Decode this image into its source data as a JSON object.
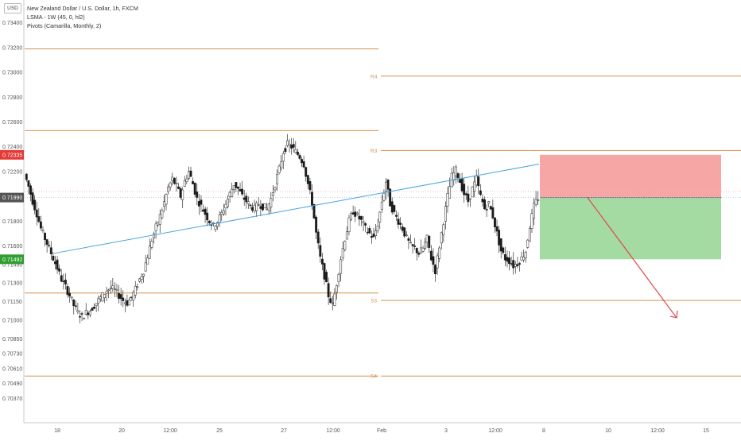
{
  "header": {
    "currency_badge": "USD",
    "symbol_title": "New Zealand Dollar / U.S. Dollar, 1h, FXCM",
    "indicator_1": "LSMA - 1W (45, 0, hl2)",
    "indicator_2": "Pivots (Camarilla, Monthly, 2)"
  },
  "chart_data": {
    "type": "candlestick",
    "symbol": "NZDUSD",
    "timeframe": "1h",
    "ylim": [
      0.7025,
      0.7352
    ],
    "y_ticks": [
      "0.73400",
      "0.73200",
      "0.73000",
      "0.72800",
      "0.72600",
      "0.72400",
      "0.72200",
      "0.71800",
      "0.71600",
      "0.71450",
      "0.71300",
      "0.71150",
      "0.71000",
      "0.70850",
      "0.70730",
      "0.70610",
      "0.70490",
      "0.70370"
    ],
    "x_ticks": [
      "18",
      "20",
      "12:00",
      "25",
      "27",
      "12:00",
      "Feb",
      "3",
      "12:00",
      "8",
      "10",
      "12:00",
      "15"
    ],
    "price_labels": [
      {
        "value": 0.72335,
        "text": "0.72335",
        "color": "#e53935"
      },
      {
        "value": 0.7199,
        "text": "0.71990",
        "color": "#555555"
      },
      {
        "value": 0.71492,
        "text": "0.71492",
        "color": "#2e9e2e"
      }
    ],
    "pivots": {
      "color": "#d9904a",
      "prev_period": [
        0.7319,
        0.7253,
        0.7122,
        0.7055
      ],
      "curr_period": [
        {
          "label": "R4",
          "value": 0.7297
        },
        {
          "label": "R3",
          "value": 0.7237
        },
        {
          "label": "S3",
          "value": 0.7116
        },
        {
          "label": "S4",
          "value": 0.7055
        }
      ]
    },
    "lsma_line": {
      "color": "#4aa3df",
      "points": [
        [
          68,
          0.7154
        ],
        [
          678,
          0.7226
        ]
      ]
    },
    "trade_box": {
      "stop_fill": "#f7a6a6",
      "target_fill": "#a3dba3",
      "stop_price": 0.72335,
      "entry_price": 0.7199,
      "target_price": 0.71492
    },
    "projection_arrow": {
      "color": "#e04a4a",
      "from_price": 0.7199,
      "to_price": 0.7102
    },
    "current_price_line": 0.7199,
    "price_path": [
      0.7218,
      0.7208,
      0.7196,
      0.7186,
      0.7174,
      0.7166,
      0.7158,
      0.715,
      0.7142,
      0.7133,
      0.7127,
      0.712,
      0.7112,
      0.7106,
      0.7103,
      0.7106,
      0.7108,
      0.7112,
      0.7116,
      0.712,
      0.7124,
      0.7126,
      0.7124,
      0.712,
      0.7116,
      0.7114,
      0.7118,
      0.7125,
      0.7133,
      0.714,
      0.7152,
      0.7165,
      0.7175,
      0.7184,
      0.7195,
      0.7207,
      0.7214,
      0.7208,
      0.72,
      0.7212,
      0.722,
      0.721,
      0.7198,
      0.7192,
      0.7186,
      0.718,
      0.7176,
      0.718,
      0.7186,
      0.7194,
      0.7202,
      0.721,
      0.7206,
      0.72,
      0.7196,
      0.7192,
      0.719,
      0.7194,
      0.7192,
      0.719,
      0.7198,
      0.721,
      0.7222,
      0.7236,
      0.7242,
      0.724,
      0.7236,
      0.7232,
      0.7226,
      0.721,
      0.7195,
      0.717,
      0.715,
      0.7136,
      0.712,
      0.7112,
      0.713,
      0.715,
      0.7166,
      0.718,
      0.7188,
      0.7184,
      0.718,
      0.7174,
      0.717,
      0.7166,
      0.7178,
      0.7196,
      0.7212,
      0.7194,
      0.7186,
      0.718,
      0.7174,
      0.7166,
      0.716,
      0.7158,
      0.7154,
      0.7158,
      0.7166,
      0.715,
      0.714,
      0.716,
      0.718,
      0.72,
      0.7216,
      0.7221,
      0.7212,
      0.7202,
      0.7196,
      0.7206,
      0.7214,
      0.72,
      0.719,
      0.7194,
      0.7184,
      0.717,
      0.7156,
      0.715,
      0.7148,
      0.7144,
      0.7146,
      0.715,
      0.7156,
      0.7176,
      0.7192,
      0.7199
    ]
  }
}
